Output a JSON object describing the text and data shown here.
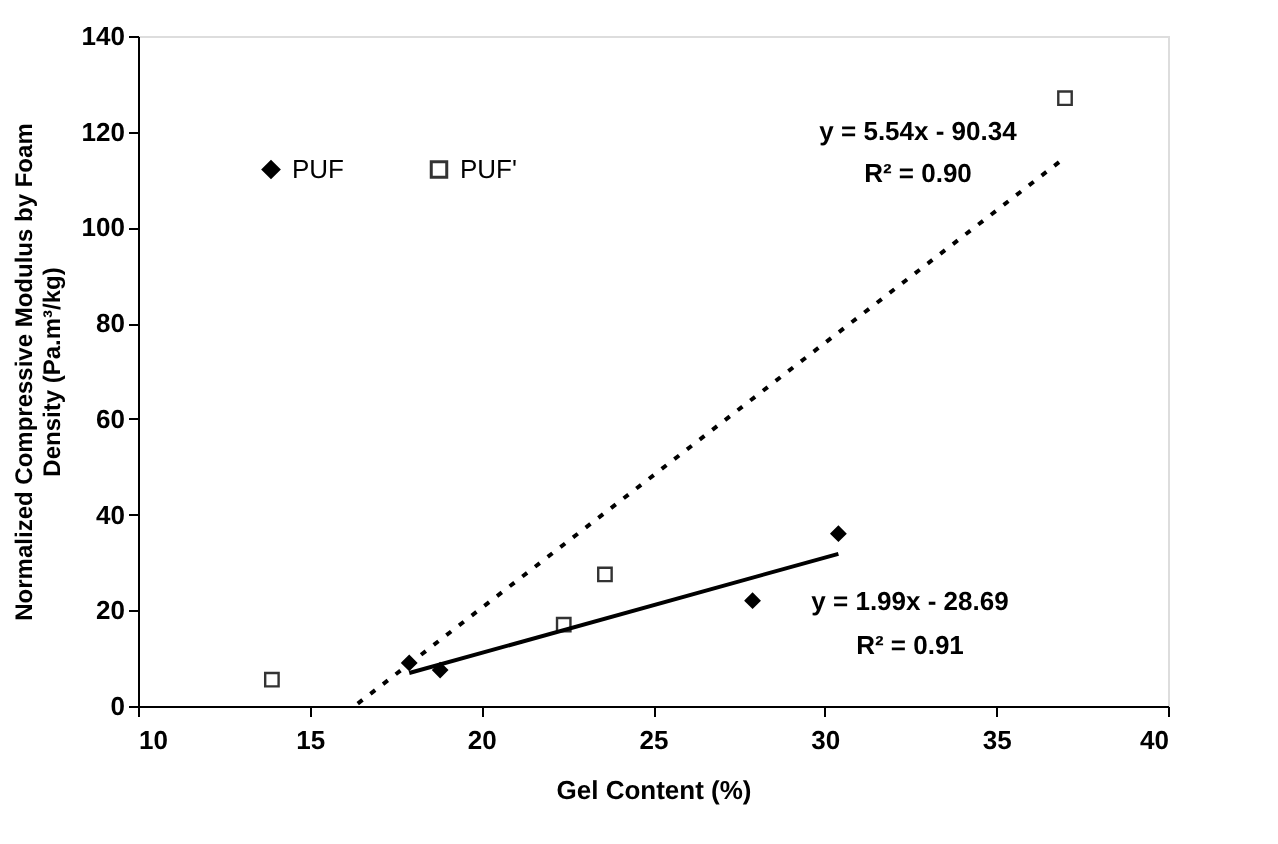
{
  "chart_data": {
    "type": "scatter",
    "xlabel": "Gel Content (%)",
    "ylabel": "Normalized Compressive Modulus by Foam Density (Pa.m³/kg)",
    "xlim": [
      10,
      40
    ],
    "xticks": [
      10,
      15,
      20,
      25,
      30,
      35,
      40
    ],
    "ylim": [
      0,
      140
    ],
    "yticks": [
      0,
      20,
      40,
      60,
      80,
      100,
      120,
      140
    ],
    "grid": false,
    "legend": "top left",
    "series": [
      {
        "name": "PUF",
        "marker": "diamond",
        "color": "#000000",
        "x": [
          17.9,
          18.8,
          27.9,
          30.4
        ],
        "values": [
          9,
          7.5,
          22,
          36
        ]
      },
      {
        "name": "PUF'",
        "marker": "square",
        "color": "#333333",
        "x": [
          13.9,
          22.4,
          23.6,
          37
        ],
        "values": [
          5.5,
          17,
          27.5,
          127
        ]
      },
      {
        "type": "line",
        "marker": "none",
        "line_style": "solid",
        "color": "#000000",
        "x": [
          17.9,
          30.4
        ],
        "values": [
          6.9,
          31.8
        ]
      },
      {
        "type": "line",
        "marker": "none",
        "line_style": "dotted",
        "color": "#000000",
        "x": [
          16.4,
          37
        ],
        "values": [
          0.5,
          114.6
        ]
      }
    ],
    "annotations": [
      "y = 5.54x - 90.34",
      "R² = 0.90",
      "y = 1.99x - 28.69",
      "R² = 0.91"
    ]
  }
}
